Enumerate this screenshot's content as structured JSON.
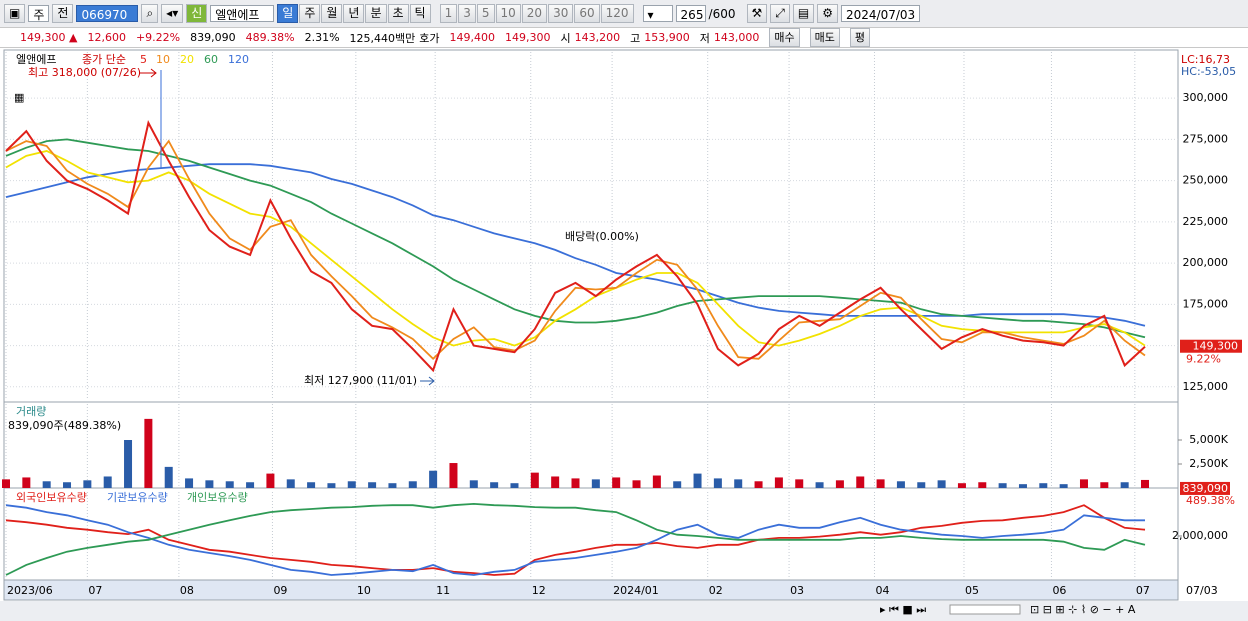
{
  "toolbar": {
    "market": "주",
    "prev": "전",
    "code": "066970",
    "badge": "신",
    "name": "엘앤에프",
    "periods": [
      "일",
      "주",
      "월",
      "년",
      "분",
      "초",
      "틱"
    ],
    "intervals": [
      "1",
      "3",
      "5",
      "10",
      "20",
      "30",
      "60",
      "120"
    ],
    "count": "265",
    "count_max": "/600",
    "date": "2024/07/03"
  },
  "info": {
    "price": "149,300 ▲",
    "change": "12,600",
    "change_pct": "+9.22%",
    "volume": "839,090",
    "volume_pct": "489.38%",
    "turnover": "2.31%",
    "amount": "125,440백만",
    "quote_label": "호가",
    "ask": "149,400",
    "bid": "149,300",
    "open_label": "시",
    "open": "143,200",
    "high_label": "고",
    "high": "153,900",
    "low_label": "저",
    "low": "143,000",
    "buy": "매수",
    "sell": "매도",
    "avg": "평"
  },
  "chart_data": [
    {
      "type": "line",
      "title": "엘앤에프",
      "legend_label": "종가 단순",
      "lc_label": "LC:16,73",
      "hc_label": "HC:-53,05",
      "last_label": "149,300",
      "change_label": "9.22%",
      "annotations": {
        "high": "최고 318,000 (07/26)",
        "low": "최저 127,900 (11/01)",
        "dividend": "배당락(0.00%)"
      },
      "xlim": [
        0,
        56
      ],
      "ylim": [
        117000,
        328000
      ],
      "yticks": [
        {
          "value": 125000,
          "label": "125,000"
        },
        {
          "value": 150000,
          "label": "150,000"
        },
        {
          "value": 175000,
          "label": "175,000"
        },
        {
          "value": 200000,
          "label": "200,000"
        },
        {
          "value": 225000,
          "label": "225,000"
        },
        {
          "value": 250000,
          "label": "250,000"
        },
        {
          "value": 275000,
          "label": "275,000"
        },
        {
          "value": 300000,
          "label": "300,000"
        }
      ],
      "series": [
        {
          "name": "120",
          "color": "#3a6fd8",
          "values": [
            240000,
            243000,
            246000,
            249000,
            252000,
            254000,
            256000,
            257000,
            258000,
            259000,
            260000,
            260000,
            260000,
            259000,
            257000,
            255000,
            251000,
            248000,
            244000,
            240000,
            235000,
            229000,
            226000,
            222000,
            218000,
            215000,
            212000,
            208000,
            203000,
            199000,
            194000,
            192000,
            190000,
            187000,
            184000,
            180000,
            176000,
            173000,
            171000,
            170000,
            169000,
            168000,
            168000,
            168000,
            168000,
            168000,
            168000,
            168000,
            169000,
            169000,
            169000,
            169000,
            169000,
            168000,
            167000,
            165000,
            162000
          ]
        },
        {
          "name": "60",
          "color": "#2e9a55",
          "values": [
            265000,
            270000,
            274000,
            275000,
            273000,
            271000,
            269000,
            268000,
            265000,
            262000,
            258000,
            254000,
            250000,
            247000,
            242000,
            237000,
            230000,
            224000,
            218000,
            212000,
            205000,
            198000,
            190000,
            184000,
            178000,
            172000,
            168000,
            165000,
            164000,
            164000,
            165000,
            167000,
            170000,
            174000,
            177000,
            178000,
            179000,
            180000,
            180000,
            180000,
            180000,
            179000,
            178000,
            177000,
            176000,
            172000,
            169000,
            168000,
            167000,
            166000,
            165000,
            165000,
            164000,
            163000,
            161000,
            158000,
            155000
          ]
        },
        {
          "name": "20",
          "color": "#f2e200",
          "values": [
            258000,
            265000,
            268000,
            262000,
            255000,
            252000,
            249000,
            250000,
            255000,
            250000,
            242000,
            236000,
            230000,
            228000,
            222000,
            212000,
            202000,
            192000,
            182000,
            172000,
            163000,
            155000,
            150000,
            153000,
            154000,
            150000,
            155000,
            165000,
            172000,
            180000,
            185000,
            190000,
            194000,
            194000,
            188000,
            175000,
            162000,
            152000,
            150000,
            153000,
            157000,
            162000,
            168000,
            172000,
            173000,
            168000,
            162000,
            160000,
            159000,
            158000,
            158000,
            158000,
            158000,
            161000,
            163000,
            158000,
            150000
          ]
        },
        {
          "name": "10",
          "color": "#f08a1c",
          "values": [
            268000,
            274000,
            271000,
            256000,
            248000,
            242000,
            234000,
            258000,
            274000,
            251000,
            230000,
            215000,
            208000,
            222000,
            226000,
            205000,
            192000,
            180000,
            167000,
            161000,
            154000,
            142000,
            154000,
            161000,
            149000,
            147000,
            153000,
            171000,
            185000,
            184000,
            185000,
            194000,
            202000,
            199000,
            184000,
            162000,
            143000,
            142000,
            153000,
            164000,
            165000,
            166000,
            174000,
            182000,
            179000,
            166000,
            154000,
            152000,
            158000,
            158000,
            155000,
            153000,
            151000,
            156000,
            165000,
            153000,
            144000
          ]
        },
        {
          "name": "5",
          "color": "#e0201a",
          "values": [
            268000,
            280000,
            262000,
            250000,
            245000,
            238000,
            230000,
            285000,
            262000,
            240000,
            220000,
            210000,
            205000,
            238000,
            215000,
            195000,
            188000,
            172000,
            162000,
            160000,
            148000,
            135000,
            172000,
            150000,
            148000,
            146000,
            160000,
            182000,
            188000,
            180000,
            190000,
            198000,
            205000,
            192000,
            175000,
            148000,
            138000,
            145000,
            160000,
            168000,
            162000,
            170000,
            178000,
            185000,
            172000,
            160000,
            148000,
            155000,
            160000,
            156000,
            153000,
            152000,
            150000,
            162000,
            168000,
            138000,
            149300
          ]
        }
      ]
    },
    {
      "type": "bar",
      "title": "거래량",
      "subtitle": "839,090주(489.38%)",
      "last_label": "839,090",
      "change_label": "489.38%",
      "xlim": [
        0,
        56
      ],
      "ylim": [
        0,
        8750000
      ],
      "yticks": [
        {
          "value": 2500000,
          "label": "2,500K"
        },
        {
          "value": 5000000,
          "label": "5,000K"
        }
      ],
      "values": [
        900000,
        1100000,
        700000,
        600000,
        800000,
        1200000,
        5000000,
        7200000,
        2200000,
        1000000,
        800000,
        700000,
        600000,
        1500000,
        900000,
        600000,
        500000,
        700000,
        600000,
        500000,
        700000,
        1800000,
        2600000,
        800000,
        600000,
        500000,
        1600000,
        1200000,
        1000000,
        900000,
        1100000,
        800000,
        1300000,
        700000,
        1500000,
        1000000,
        900000,
        700000,
        1100000,
        900000,
        600000,
        800000,
        1200000,
        900000,
        700000,
        600000,
        800000,
        500000,
        600000,
        500000,
        400000,
        500000,
        400000,
        900000,
        600000,
        600000,
        839090
      ]
    },
    {
      "type": "line",
      "xlim": [
        0,
        56
      ],
      "ylim": [
        1300000,
        2700000
      ],
      "yticks": [
        {
          "value": 2000000,
          "label": "2,000,000"
        }
      ],
      "xticks": [
        {
          "value": 0,
          "label": "2023/06"
        },
        {
          "value": 4,
          "label": "07"
        },
        {
          "value": 8.5,
          "label": "08"
        },
        {
          "value": 13.1,
          "label": "09"
        },
        {
          "value": 17.2,
          "label": "10"
        },
        {
          "value": 21.1,
          "label": "11"
        },
        {
          "value": 25.8,
          "label": "12"
        },
        {
          "value": 29.8,
          "label": "2024/01"
        },
        {
          "value": 34.5,
          "label": "02"
        },
        {
          "value": 38.5,
          "label": "03"
        },
        {
          "value": 42.7,
          "label": "04"
        },
        {
          "value": 47.1,
          "label": "05"
        },
        {
          "value": 51.4,
          "label": "06"
        },
        {
          "value": 55.5,
          "label": "07"
        }
      ],
      "x_end_label": "07/03",
      "series": [
        {
          "name": "외국인보유수량",
          "color": "#e0201a",
          "values": [
            2250000,
            2220000,
            2180000,
            2130000,
            2100000,
            2060000,
            2030000,
            2100000,
            1940000,
            1860000,
            1780000,
            1750000,
            1700000,
            1650000,
            1620000,
            1590000,
            1540000,
            1520000,
            1490000,
            1460000,
            1460000,
            1490000,
            1430000,
            1410000,
            1380000,
            1400000,
            1620000,
            1700000,
            1750000,
            1810000,
            1860000,
            1860000,
            1890000,
            1840000,
            1810000,
            1860000,
            1860000,
            1940000,
            1970000,
            1970000,
            1990000,
            2020000,
            2060000,
            2020000,
            2060000,
            2130000,
            2160000,
            2210000,
            2240000,
            2250000,
            2290000,
            2320000,
            2380000,
            2490000,
            2290000,
            2130000,
            2100000
          ]
        },
        {
          "name": "기관보유수량",
          "color": "#3a6fd8",
          "values": [
            2490000,
            2450000,
            2380000,
            2330000,
            2250000,
            2180000,
            2060000,
            1970000,
            1860000,
            1780000,
            1730000,
            1680000,
            1620000,
            1540000,
            1460000,
            1430000,
            1380000,
            1400000,
            1430000,
            1460000,
            1440000,
            1540000,
            1410000,
            1380000,
            1430000,
            1460000,
            1590000,
            1620000,
            1650000,
            1700000,
            1750000,
            1810000,
            1940000,
            2100000,
            2180000,
            2020000,
            1970000,
            2100000,
            2180000,
            2130000,
            2130000,
            2220000,
            2290000,
            2180000,
            2100000,
            2060000,
            2020000,
            2000000,
            1970000,
            2000000,
            2020000,
            2050000,
            2100000,
            2330000,
            2290000,
            2250000,
            2250000
          ]
        },
        {
          "name": "개인보유수량",
          "color": "#2e9a55",
          "values": [
            1380000,
            1540000,
            1650000,
            1750000,
            1810000,
            1860000,
            1910000,
            1940000,
            2020000,
            2100000,
            2180000,
            2250000,
            2320000,
            2380000,
            2410000,
            2430000,
            2450000,
            2460000,
            2480000,
            2490000,
            2490000,
            2450000,
            2490000,
            2510000,
            2490000,
            2480000,
            2460000,
            2450000,
            2450000,
            2410000,
            2380000,
            2250000,
            2100000,
            2020000,
            2000000,
            1970000,
            1940000,
            1940000,
            1940000,
            1940000,
            1940000,
            1940000,
            1970000,
            1970000,
            2000000,
            1970000,
            1950000,
            1940000,
            1940000,
            1940000,
            1940000,
            1940000,
            1910000,
            1810000,
            1780000,
            1940000,
            1860000
          ]
        }
      ]
    }
  ]
}
